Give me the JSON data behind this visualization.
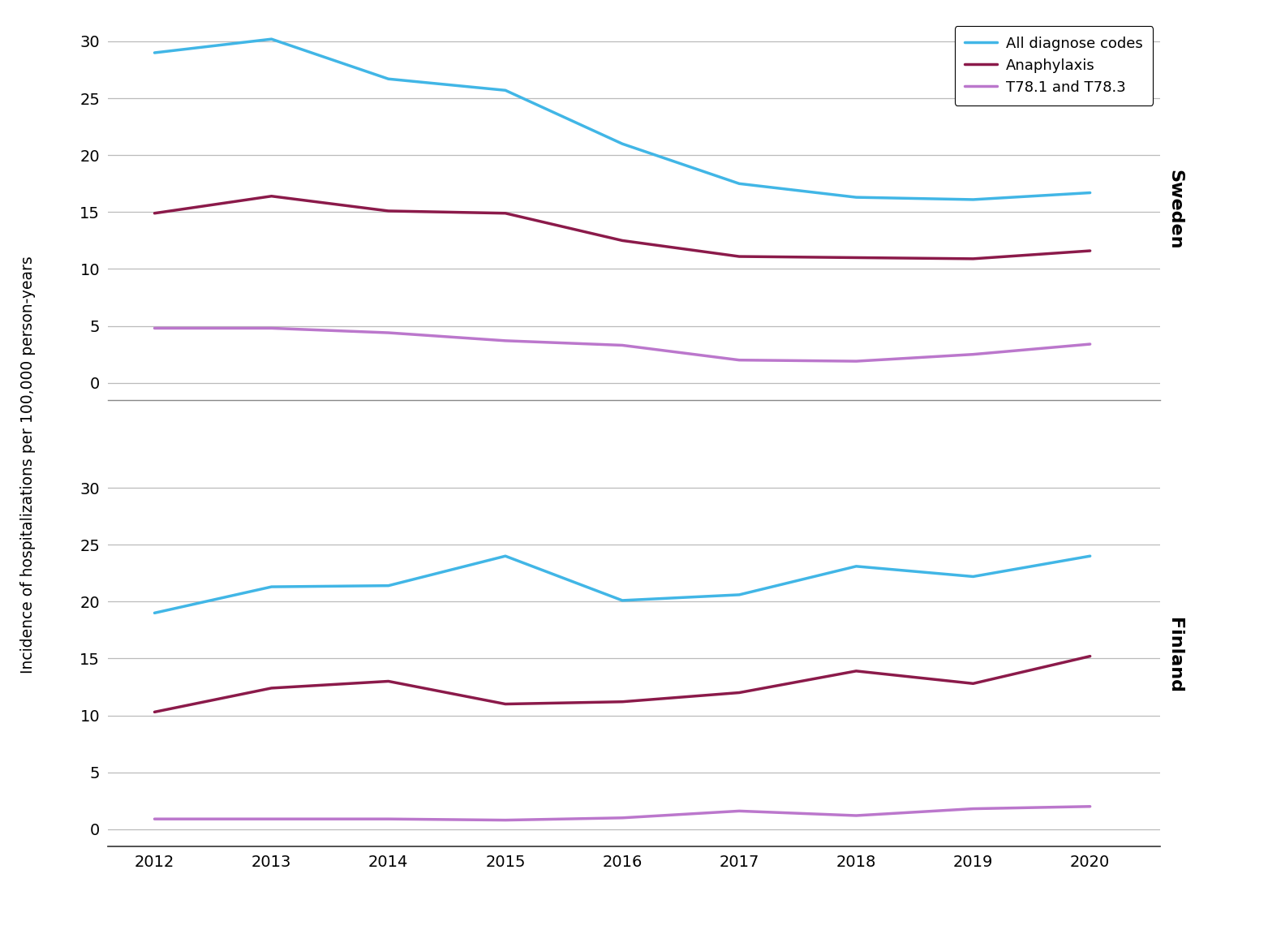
{
  "years": [
    2012,
    2013,
    2014,
    2015,
    2016,
    2017,
    2018,
    2019,
    2020
  ],
  "sweden": {
    "all_diagnose": [
      29.0,
      30.2,
      26.7,
      25.7,
      21.0,
      17.5,
      16.3,
      16.1,
      16.7
    ],
    "anaphylaxis": [
      14.9,
      16.4,
      15.1,
      14.9,
      12.5,
      11.1,
      11.0,
      10.9,
      11.6
    ],
    "t78": [
      4.8,
      4.8,
      4.4,
      3.7,
      3.3,
      2.0,
      1.9,
      2.5,
      3.4
    ]
  },
  "finland": {
    "all_diagnose": [
      19.0,
      21.3,
      21.4,
      24.0,
      20.1,
      20.6,
      23.1,
      22.2,
      24.0
    ],
    "anaphylaxis": [
      10.3,
      12.4,
      13.0,
      11.0,
      11.2,
      12.0,
      13.9,
      12.8,
      15.2
    ],
    "t78": [
      0.9,
      0.9,
      0.9,
      0.8,
      1.0,
      1.6,
      1.2,
      1.8,
      2.0
    ]
  },
  "colors": {
    "all_diagnose": "#41B6E6",
    "anaphylaxis": "#8B1A4A",
    "t78": "#BB77CC"
  },
  "legend_labels": [
    "All diagnose codes",
    "Anaphylaxis",
    "T78.1 and T78.3"
  ],
  "ylabel": "Incidence of hospitalizations per 100,000 person-years",
  "ylim": [
    -1.5,
    32
  ],
  "yticks": [
    0,
    5,
    10,
    15,
    20,
    25,
    30
  ],
  "country_labels": [
    "Sweden",
    "Finland"
  ],
  "line_width": 2.5,
  "background_color": "#FFFFFF",
  "grid_color": "#BBBBBB"
}
